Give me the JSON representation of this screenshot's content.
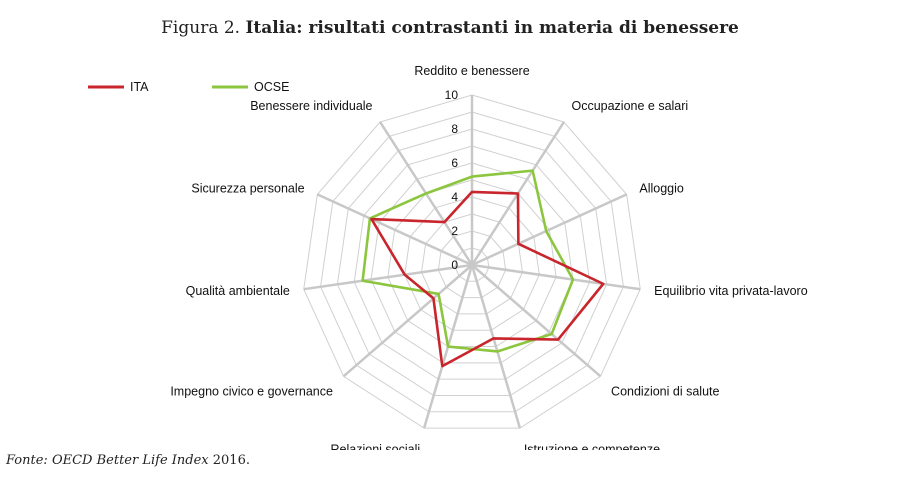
{
  "figure": {
    "number": "Figura 2.",
    "title": "Italia: risultati contrastanti in materia di benessere",
    "source_prefix": "Fonte:",
    "source_name": "OECD Better Life Index",
    "source_year": "2016."
  },
  "chart_data": {
    "type": "radar",
    "categories": [
      "Reddito e benessere",
      "Occupazione e salari",
      "Alloggio",
      "Equilibrio vita privata-lavoro",
      "Condizioni di salute",
      "Istruzione e competenze",
      "Relazioni sociali",
      "Impegno civico e governance",
      "Qualità ambientale",
      "Sicurezza personale",
      "Benessere individuale"
    ],
    "rlim": [
      0,
      10
    ],
    "ticks": [
      "0",
      "2",
      "4",
      "6",
      "8",
      "10"
    ],
    "grid": true,
    "legend_position": "top-left",
    "series": [
      {
        "name": "ITA",
        "color": "#c8252c",
        "values": [
          4.3,
          5.0,
          3.0,
          7.8,
          6.7,
          4.5,
          6.2,
          3.0,
          4.0,
          6.5,
          3.0
        ]
      },
      {
        "name": "OCSE",
        "color": "#8cc63f",
        "values": [
          5.2,
          6.6,
          4.8,
          6.0,
          6.2,
          5.3,
          5.0,
          2.6,
          6.5,
          6.6,
          5.0
        ]
      }
    ],
    "grid_color": "#d0d0d0",
    "spoke_color": "#c8c8c8"
  }
}
